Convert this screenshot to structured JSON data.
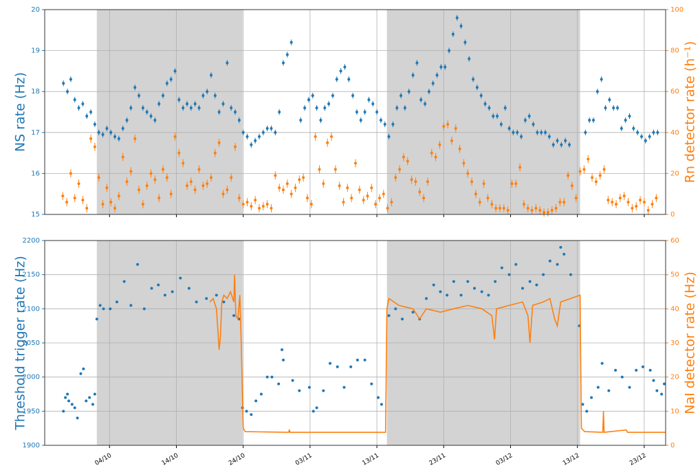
{
  "chart_data": [
    {
      "type": "combo",
      "ylabel": "NS rate (Hz)",
      "y2label": "Rn detector rate (h⁻¹)",
      "xlim": [
        267.3,
        360.2
      ],
      "ylim": [
        15,
        20
      ],
      "yticks": [
        15,
        16,
        17,
        18,
        19,
        20
      ],
      "y2lim": [
        0,
        100
      ],
      "y2ticks": [
        0,
        20,
        40,
        60,
        80,
        100
      ],
      "grid": true,
      "shaded_spans": [
        [
          275.1,
          296.9
        ],
        [
          318.5,
          347.4
        ]
      ],
      "series": [
        {
          "type": "errorbar",
          "color": "#1f77b4",
          "error": 0.07,
          "x": [
            270.1,
            270.7,
            271.2,
            271.8,
            272.4,
            273.0,
            273.6,
            274.2,
            274.8,
            275.4,
            276.0,
            276.6,
            277.2,
            277.8,
            278.4,
            279.0,
            279.6,
            280.2,
            280.8,
            281.4,
            282.0,
            282.6,
            283.2,
            283.8,
            284.4,
            285.0,
            285.6,
            286.2,
            286.8,
            287.4,
            288.0,
            288.6,
            289.2,
            289.8,
            290.4,
            291.0,
            291.6,
            292.2,
            292.8,
            293.4,
            294.0,
            294.6,
            295.2,
            295.8,
            296.4,
            297.0,
            297.6,
            298.2,
            298.8,
            299.4,
            300.0,
            300.6,
            301.2,
            301.8,
            302.4,
            303.0,
            303.6,
            304.2,
            305.6,
            306.2,
            306.8,
            307.4,
            308.0,
            308.6,
            309.2,
            309.8,
            310.4,
            311.0,
            311.6,
            312.2,
            312.8,
            313.4,
            314.0,
            314.6,
            315.2,
            315.8,
            316.4,
            317.0,
            317.6,
            318.2,
            318.8,
            319.4,
            320.0,
            320.6,
            321.2,
            321.8,
            322.4,
            323.0,
            323.6,
            324.2,
            324.8,
            325.4,
            326.0,
            326.6,
            327.2,
            327.8,
            328.4,
            329.0,
            329.6,
            330.2,
            330.8,
            331.4,
            332.0,
            332.6,
            333.2,
            333.8,
            334.4,
            335.0,
            335.6,
            336.2,
            336.8,
            337.4,
            338.0,
            338.6,
            339.2,
            339.8,
            340.4,
            341.0,
            341.6,
            342.2,
            342.8,
            343.4,
            344.0,
            344.6,
            345.2,
            345.8,
            348.2,
            348.8,
            349.4,
            350.0,
            350.6,
            351.2,
            351.8,
            352.4,
            353.0,
            353.6,
            354.2,
            354.8,
            355.4,
            356.0,
            356.6,
            357.2,
            357.8,
            358.4,
            359.0
          ],
          "values": [
            18.2,
            18.0,
            18.3,
            17.8,
            17.6,
            17.7,
            17.4,
            17.5,
            17.2,
            17.0,
            16.95,
            17.1,
            17.0,
            16.9,
            16.85,
            17.1,
            17.3,
            17.6,
            18.1,
            17.9,
            17.6,
            17.5,
            17.4,
            17.3,
            17.7,
            17.9,
            18.2,
            18.3,
            18.5,
            17.8,
            17.6,
            17.7,
            17.6,
            17.7,
            17.6,
            17.9,
            18.0,
            18.4,
            17.9,
            17.5,
            17.7,
            18.7,
            17.6,
            17.5,
            17.3,
            17.0,
            16.9,
            16.7,
            16.8,
            16.9,
            17.0,
            17.1,
            17.1,
            17.0,
            17.5,
            18.7,
            18.9,
            19.2,
            17.3,
            17.6,
            17.8,
            17.9,
            17.6,
            17.3,
            17.6,
            17.7,
            17.9,
            18.3,
            18.5,
            18.6,
            18.3,
            17.9,
            17.5,
            17.3,
            17.5,
            17.8,
            17.7,
            17.5,
            17.3,
            17.2,
            16.9,
            17.2,
            17.6,
            17.9,
            17.6,
            18.0,
            18.4,
            18.7,
            17.8,
            17.7,
            18.0,
            18.2,
            18.4,
            18.6,
            18.6,
            19.0,
            19.4,
            19.8,
            19.6,
            19.2,
            18.8,
            18.3,
            18.1,
            17.9,
            17.7,
            17.6,
            17.4,
            17.4,
            17.2,
            17.6,
            17.1,
            17.0,
            17.0,
            16.9,
            17.3,
            17.4,
            17.2,
            17.0,
            17.0,
            17.0,
            16.9,
            16.7,
            16.8,
            16.7,
            16.8,
            16.7,
            17.0,
            17.3,
            17.3,
            18.0,
            18.3,
            17.6,
            17.8,
            17.6,
            17.6,
            17.1,
            17.3,
            17.4,
            17.1,
            17.0,
            16.9,
            16.8,
            16.9,
            17.0,
            17.0
          ]
        },
        {
          "type": "errorbar",
          "axis": "y2",
          "color": "#ff7f0e",
          "error": 2,
          "x": [
            270.0,
            270.6,
            271.2,
            271.8,
            272.4,
            273.0,
            273.6,
            274.2,
            274.8,
            275.4,
            276.0,
            276.6,
            277.2,
            277.8,
            278.4,
            279.0,
            279.6,
            280.2,
            280.8,
            281.4,
            282.0,
            282.6,
            283.2,
            283.8,
            284.4,
            285.0,
            285.6,
            286.2,
            286.8,
            287.4,
            288.0,
            288.6,
            289.2,
            289.8,
            290.4,
            291.0,
            291.6,
            292.2,
            292.8,
            293.4,
            294.0,
            294.6,
            295.2,
            295.8,
            296.4,
            297.0,
            297.6,
            298.2,
            298.8,
            299.4,
            300.0,
            300.6,
            301.2,
            301.8,
            302.4,
            303.0,
            303.6,
            304.2,
            304.8,
            305.4,
            306.0,
            306.6,
            307.2,
            307.8,
            308.4,
            309.0,
            309.6,
            310.2,
            310.8,
            311.4,
            312.0,
            312.6,
            313.2,
            313.8,
            314.4,
            315.0,
            315.6,
            316.2,
            316.8,
            317.4,
            318.0,
            318.6,
            319.2,
            319.8,
            320.4,
            321.0,
            321.6,
            322.2,
            322.8,
            323.4,
            324.0,
            324.6,
            325.2,
            325.8,
            326.4,
            327.0,
            327.6,
            328.2,
            328.8,
            329.4,
            330.0,
            330.6,
            331.2,
            331.8,
            332.4,
            333.0,
            333.6,
            334.2,
            334.8,
            335.4,
            336.0,
            336.6,
            337.2,
            337.8,
            338.4,
            339.0,
            339.6,
            340.2,
            340.8,
            341.4,
            342.0,
            342.6,
            343.2,
            343.8,
            344.4,
            345.0,
            345.6,
            346.2,
            346.8,
            347.4,
            348.0,
            348.6,
            349.2,
            349.8,
            350.4,
            351.0,
            351.6,
            352.2,
            352.8,
            353.4,
            354.0,
            354.6,
            355.2,
            355.8,
            356.4,
            357.0,
            357.6,
            358.2,
            358.8
          ],
          "values": [
            9,
            6,
            20,
            8,
            15,
            7,
            3,
            37,
            33,
            18,
            5,
            13,
            6,
            3,
            9,
            28,
            16,
            21,
            37,
            12,
            5,
            14,
            20,
            17,
            8,
            22,
            18,
            10,
            38,
            30,
            25,
            14,
            16,
            12,
            22,
            14,
            15,
            18,
            30,
            35,
            10,
            12,
            18,
            33,
            8,
            5,
            6,
            4,
            7,
            3,
            4,
            5,
            3,
            19,
            13,
            12,
            15,
            10,
            13,
            17,
            18,
            8,
            5,
            38,
            22,
            15,
            35,
            38,
            22,
            14,
            6,
            13,
            8,
            25,
            12,
            7,
            9,
            13,
            5,
            8,
            10,
            3,
            6,
            18,
            22,
            28,
            26,
            17,
            16,
            11,
            8,
            16,
            30,
            28,
            34,
            43,
            44,
            36,
            42,
            32,
            25,
            20,
            16,
            10,
            6,
            15,
            8,
            5,
            3,
            3,
            3,
            2,
            15,
            15,
            23,
            5,
            3,
            2,
            3,
            2,
            1,
            1,
            2,
            3,
            6,
            6,
            19,
            14,
            8,
            21,
            22,
            27,
            18,
            16,
            19,
            22,
            7,
            6,
            5,
            8,
            9,
            6,
            3,
            4,
            7,
            6,
            2,
            5,
            8
          ]
        }
      ]
    },
    {
      "type": "combo",
      "ylabel": "Threshold trigger rate (Hz)",
      "y2label": "NaI detector rate (Hz)",
      "xlim": [
        267.3,
        360.2
      ],
      "ylim": [
        1900,
        2200
      ],
      "yticks": [
        1900,
        1950,
        2000,
        2050,
        2100,
        2150,
        2200
      ],
      "y2lim": [
        0,
        60
      ],
      "y2ticks": [
        0,
        10,
        20,
        30,
        40,
        50,
        60
      ],
      "grid": true,
      "xticks": [
        {
          "value": 277,
          "label": "04/10"
        },
        {
          "value": 287,
          "label": "14/10"
        },
        {
          "value": 297,
          "label": "24/10"
        },
        {
          "value": 307,
          "label": "03/11"
        },
        {
          "value": 317,
          "label": "13/11"
        },
        {
          "value": 327,
          "label": "23/11"
        },
        {
          "value": 337,
          "label": "03/12"
        },
        {
          "value": 347,
          "label": "13/12"
        },
        {
          "value": 357,
          "label": "23/12"
        }
      ],
      "shaded_spans": [
        [
          275.1,
          296.9
        ],
        [
          318.5,
          347.4
        ]
      ],
      "series": [
        {
          "type": "scatter",
          "color": "#1f77b4",
          "x": [
            270.1,
            270.4,
            270.7,
            270.9,
            271.4,
            271.8,
            272.2,
            272.7,
            273.1,
            273.5,
            274.0,
            274.5,
            274.8,
            275.1,
            275.6,
            276.1,
            277.1,
            278.1,
            279.2,
            280.2,
            281.2,
            282.2,
            283.3,
            284.3,
            285.3,
            286.4,
            287.6,
            288.9,
            290.0,
            291.5,
            293.0,
            294.1,
            295.6,
            296.4,
            296.9,
            297.5,
            298.2,
            298.9,
            299.7,
            300.6,
            301.3,
            302.3,
            302.8,
            303.0,
            304.4,
            305.4,
            306.9,
            307.5,
            308.0,
            309.0,
            310.0,
            311.1,
            312.1,
            313.1,
            314.1,
            315.2,
            316.2,
            317.2,
            317.7,
            318.8,
            319.8,
            320.8,
            322.4,
            323.4,
            324.4,
            325.5,
            326.5,
            327.5,
            328.5,
            329.6,
            330.6,
            331.6,
            332.7,
            333.7,
            334.7,
            335.7,
            336.8,
            337.8,
            338.8,
            339.9,
            340.9,
            341.9,
            342.9,
            344.0,
            344.5,
            345.0,
            346.0,
            347.3,
            347.8,
            348.4,
            349.1,
            350.1,
            350.7,
            351.7,
            352.7,
            353.7,
            354.8,
            355.8,
            356.8,
            357.9,
            358.4,
            358.9,
            359.6,
            360.0
          ],
          "values": [
            1950,
            1970,
            1975,
            1965,
            1960,
            1955,
            1940,
            2005,
            2012,
            1965,
            1970,
            1960,
            1975,
            2085,
            2105,
            2100,
            2100,
            2110,
            2140,
            2105,
            2165,
            2100,
            2130,
            2135,
            2120,
            2125,
            2145,
            2130,
            2110,
            2115,
            2120,
            2110,
            2090,
            2085,
            1955,
            1950,
            1945,
            1965,
            1975,
            2000,
            2000,
            1990,
            2040,
            2025,
            1995,
            1980,
            1985,
            1950,
            1955,
            1980,
            2020,
            2015,
            1985,
            2015,
            2025,
            2025,
            1990,
            1970,
            1960,
            2090,
            2100,
            2085,
            2095,
            2085,
            2115,
            2135,
            2125,
            2120,
            2140,
            2120,
            2140,
            2130,
            2125,
            2120,
            2140,
            2160,
            2150,
            2165,
            2130,
            2140,
            2135,
            2150,
            2170,
            2165,
            2190,
            2180,
            2150,
            2075,
            1960,
            1950,
            1970,
            1985,
            2020,
            1980,
            2010,
            2000,
            1985,
            2010,
            2015,
            2010,
            1995,
            1980,
            1975,
            1990
          ]
        },
        {
          "type": "line",
          "axis": "y2",
          "color": "#ff7f0e",
          "x": [
            292.0,
            292.5,
            293.0,
            293.4,
            293.6,
            293.8,
            294.1,
            294.6,
            295.1,
            295.6,
            295.7,
            295.9,
            296.2,
            296.5,
            296.7,
            297.0,
            297.3,
            303.8,
            303.9,
            304.0,
            318.3,
            318.5,
            318.8,
            320.3,
            322.4,
            323.4,
            324.4,
            326.5,
            328.5,
            330.6,
            332.7,
            334.2,
            334.6,
            334.9,
            336.8,
            338.8,
            339.6,
            339.9,
            340.3,
            341.9,
            342.9,
            343.6,
            344.0,
            344.5,
            346.0,
            347.4,
            347.6,
            348.1,
            350.8,
            350.9,
            351.0,
            354.3,
            354.5,
            360.2
          ],
          "values": [
            42,
            43,
            40,
            28,
            32,
            42,
            44,
            43,
            45,
            42,
            50,
            38,
            37,
            44,
            30,
            5,
            4,
            3.8,
            4.6,
            3.8,
            3.8,
            40,
            43,
            41,
            40,
            37,
            40,
            39,
            40,
            41,
            40,
            38,
            31,
            40,
            41,
            42,
            38,
            30,
            41,
            42,
            43,
            37,
            35,
            42,
            43,
            44,
            5,
            4,
            3.8,
            10,
            3.8,
            4.5,
            3.8,
            3.8
          ]
        }
      ]
    }
  ]
}
